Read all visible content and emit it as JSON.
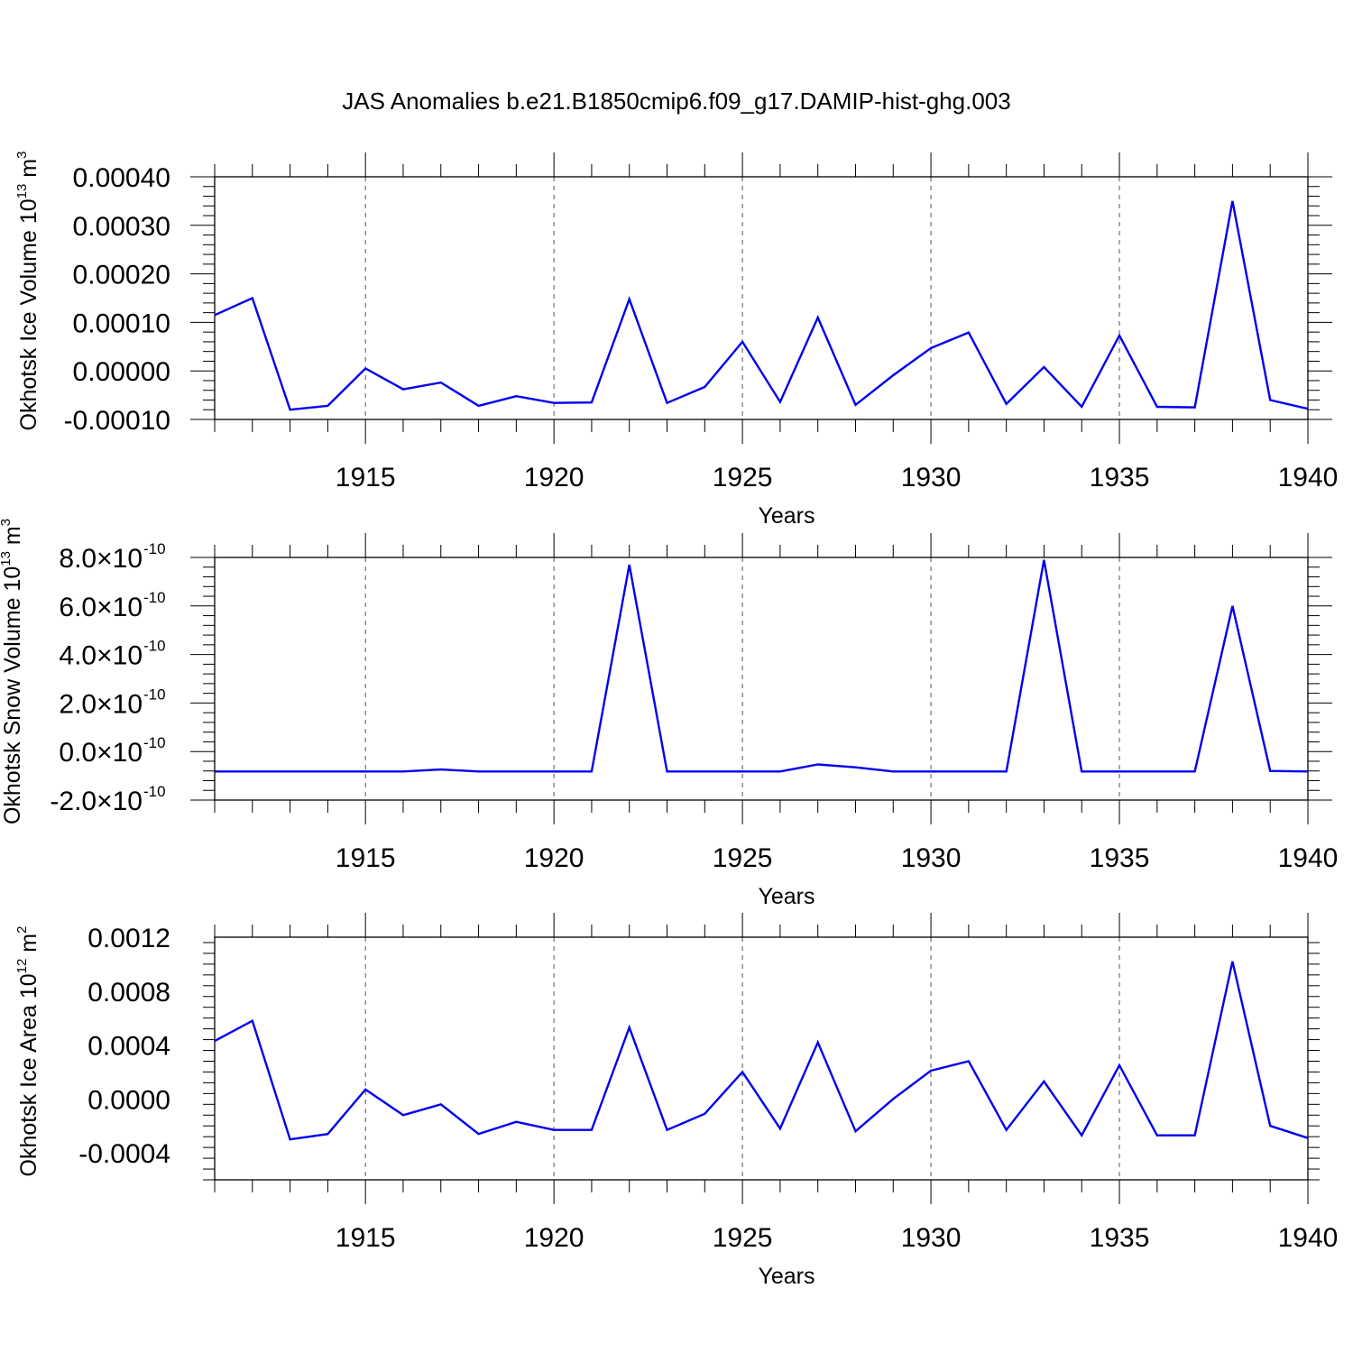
{
  "title": "JAS Anomalies b.e21.B1850cmip6.f09_g17.DAMIP-hist-ghg.003",
  "colors": {
    "series": "#0000ee",
    "axis": "#000000",
    "grid": "#555555"
  },
  "chart_data": [
    {
      "type": "line",
      "xlabel": "Years",
      "ylabel": {
        "text": "Okhotsk Ice Volume 10",
        "exp": "13",
        "unit": " m",
        "unit_exp": "3"
      },
      "xlim": [
        1911,
        1940
      ],
      "ylim": [
        -0.0001,
        0.0004
      ],
      "x_ticks": [
        1915,
        1920,
        1925,
        1930,
        1935,
        1940
      ],
      "y_ticks": [
        -0.0001,
        0.0,
        0.0001,
        0.0002,
        0.0003,
        0.0004
      ],
      "y_tick_labels": [
        "-0.00010",
        "0.00000",
        "0.00010",
        "0.00020",
        "0.00030",
        "0.00040"
      ],
      "grid": "vertical dashed at major x ticks",
      "x": [
        1911,
        1912,
        1913,
        1914,
        1915,
        1916,
        1917,
        1918,
        1919,
        1920,
        1921,
        1922,
        1923,
        1924,
        1925,
        1926,
        1927,
        1928,
        1929,
        1930,
        1931,
        1932,
        1933,
        1934,
        1935,
        1936,
        1937,
        1938,
        1939,
        1940
      ],
      "values": [
        0.000115,
        0.00015,
        -8e-05,
        -7.2e-05,
        5e-06,
        -3.8e-05,
        -2.4e-05,
        -7.2e-05,
        -5.2e-05,
        -6.6e-05,
        -6.5e-05,
        0.000148,
        -6.6e-05,
        -3.3e-05,
        6e-05,
        -6.4e-05,
        0.00011,
        -7e-05,
        -9e-06,
        4.7e-05,
        7.9e-05,
        -6.8e-05,
        8e-06,
        -7.4e-05,
        7.3e-05,
        -7.4e-05,
        -7.5e-05,
        0.00035,
        -6e-05,
        -7.8e-05
      ]
    },
    {
      "type": "line",
      "xlabel": "Years",
      "ylabel": {
        "text": "Okhotsk Snow Volume 10",
        "exp": "13",
        "unit": " m",
        "unit_exp": "3"
      },
      "xlim": [
        1911,
        1940
      ],
      "ylim": [
        -2e-10,
        8e-10
      ],
      "x_ticks": [
        1915,
        1920,
        1925,
        1930,
        1935,
        1940
      ],
      "y_ticks": [
        -2e-10,
        0.0,
        2e-10,
        4e-10,
        6e-10,
        8e-10
      ],
      "y_tick_labels": [
        {
          "mantissa": "-2.0",
          "exp": "-10"
        },
        {
          "mantissa": "0.0",
          "exp": "-10"
        },
        {
          "mantissa": "2.0",
          "exp": "-10"
        },
        {
          "mantissa": "4.0",
          "exp": "-10"
        },
        {
          "mantissa": "6.0",
          "exp": "-10"
        },
        {
          "mantissa": "8.0",
          "exp": "-10"
        }
      ],
      "y_tick_times": "×10",
      "grid": "vertical dashed at major x ticks",
      "x": [
        1911,
        1912,
        1913,
        1914,
        1915,
        1916,
        1917,
        1918,
        1919,
        1920,
        1921,
        1922,
        1923,
        1924,
        1925,
        1926,
        1927,
        1928,
        1929,
        1930,
        1931,
        1932,
        1933,
        1934,
        1935,
        1936,
        1937,
        1938,
        1939,
        1940
      ],
      "values": [
        -8.2e-11,
        -8.2e-11,
        -8.2e-11,
        -8.2e-11,
        -8.2e-11,
        -8.2e-11,
        -7.4e-11,
        -8.2e-11,
        -8.2e-11,
        -8.2e-11,
        -8.2e-11,
        7.7e-10,
        -8.2e-11,
        -8.2e-11,
        -8.2e-11,
        -8.2e-11,
        -5.3e-11,
        -6.5e-11,
        -8.2e-11,
        -8.2e-11,
        -8.2e-11,
        -8.2e-11,
        7.9e-10,
        -8.2e-11,
        -8.2e-11,
        -8.2e-11,
        -8.2e-11,
        6e-10,
        -8e-11,
        -8.2e-11
      ]
    },
    {
      "type": "line",
      "xlabel": "Years",
      "ylabel": {
        "text": "Okhotsk Ice Area 10",
        "exp": "12",
        "unit": " m",
        "unit_exp": "2"
      },
      "xlim": [
        1911,
        1940
      ],
      "ylim": [
        -0.0006,
        0.0012
      ],
      "x_ticks": [
        1915,
        1920,
        1925,
        1930,
        1935,
        1940
      ],
      "y_ticks": [
        -0.0004,
        0.0,
        0.0004,
        0.0008,
        0.0012
      ],
      "y_tick_labels": [
        "-0.0004",
        "0.0000",
        "0.0004",
        "0.0008",
        "0.0012"
      ],
      "grid": "vertical dashed at major x ticks",
      "x": [
        1911,
        1912,
        1913,
        1914,
        1915,
        1916,
        1917,
        1918,
        1919,
        1920,
        1921,
        1922,
        1923,
        1924,
        1925,
        1926,
        1927,
        1928,
        1929,
        1930,
        1931,
        1932,
        1933,
        1934,
        1935,
        1936,
        1937,
        1938,
        1939,
        1940
      ],
      "values": [
        0.00043,
        0.00058,
        -0.0003,
        -0.00026,
        7e-05,
        -0.00012,
        -4e-05,
        -0.00026,
        -0.00017,
        -0.00023,
        -0.00023,
        0.00053,
        -0.00023,
        -0.00011,
        0.0002,
        -0.00022,
        0.00042,
        -0.00024,
        0.0,
        0.00021,
        0.00028,
        -0.00023,
        0.00013,
        -0.00027,
        0.00025,
        -0.00027,
        -0.00027,
        0.00102,
        -0.0002,
        -0.00029
      ]
    }
  ]
}
